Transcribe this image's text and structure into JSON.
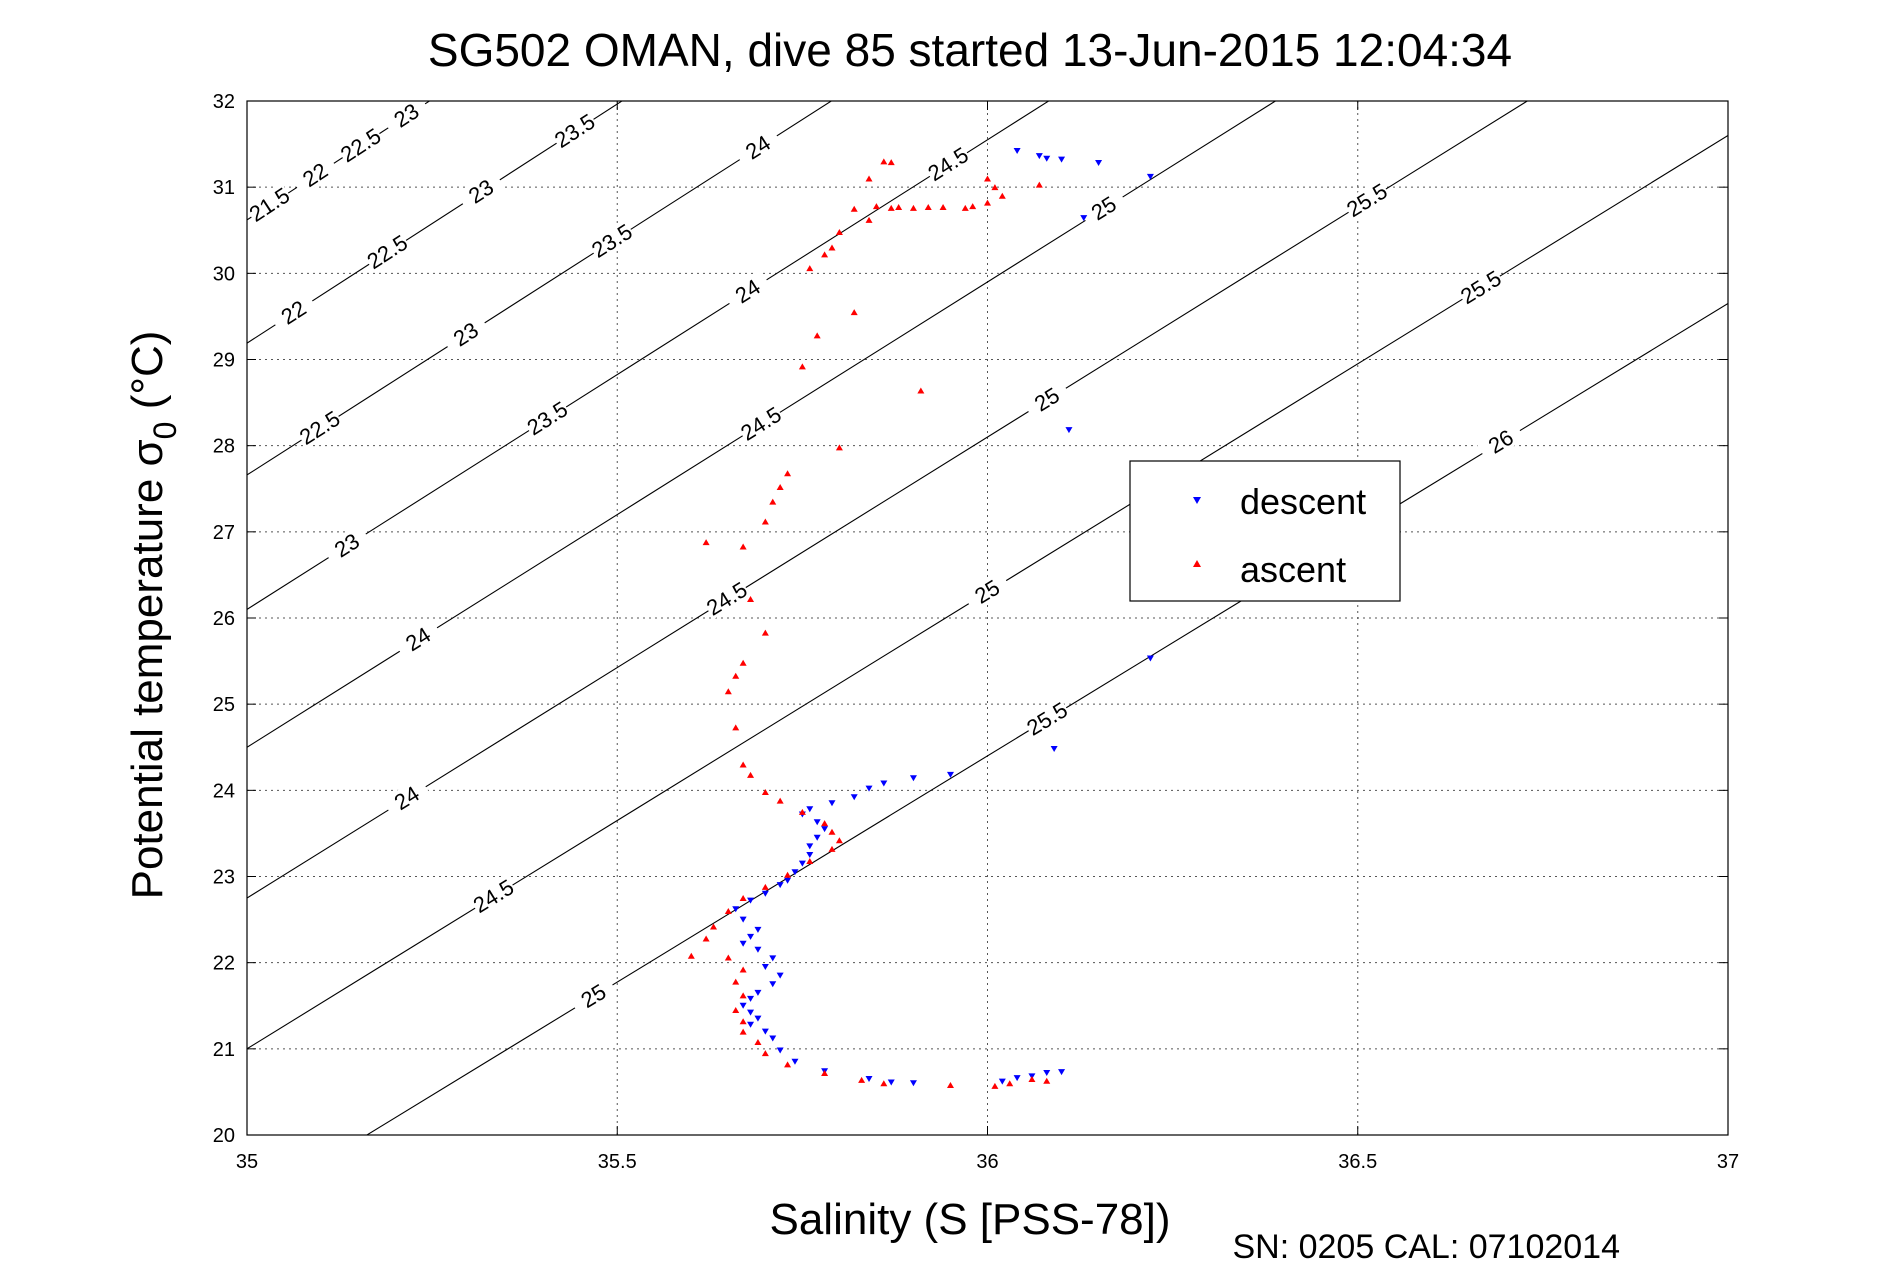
{
  "chart_data": {
    "type": "scatter",
    "title": "SG502 OMAN, dive 85 started 13-Jun-2015 12:04:34",
    "xlabel": "Salinity (S [PSS-78])",
    "ylabel_main": "Potential temperature σ",
    "ylabel_sub": "0",
    "ylabel_unit": " (°C)",
    "footer": "SN: 0205  CAL: 07102014",
    "xlim": [
      35,
      37
    ],
    "ylim": [
      20,
      32
    ],
    "xticks": [
      "35",
      "35.5",
      "36",
      "36.5",
      "37"
    ],
    "yticks": [
      "20",
      "21",
      "22",
      "23",
      "24",
      "25",
      "26",
      "27",
      "28",
      "29",
      "30",
      "31",
      "32"
    ],
    "grid": true,
    "legend_position": "center-right",
    "series": [
      {
        "name": "descent",
        "color": "#0000ff",
        "marker": "triangle-down",
        "points": [
          [
            36.04,
            31.42
          ],
          [
            36.07,
            31.36
          ],
          [
            36.08,
            31.33
          ],
          [
            36.1,
            31.32
          ],
          [
            36.15,
            31.28
          ],
          [
            36.22,
            31.12
          ],
          [
            36.13,
            30.64
          ],
          [
            36.11,
            28.18
          ],
          [
            36.22,
            25.53
          ],
          [
            36.09,
            24.48
          ],
          [
            35.95,
            24.18
          ],
          [
            35.9,
            24.14
          ],
          [
            35.86,
            24.08
          ],
          [
            35.84,
            24.02
          ],
          [
            35.82,
            23.92
          ],
          [
            35.79,
            23.85
          ],
          [
            35.76,
            23.78
          ],
          [
            35.75,
            23.72
          ],
          [
            35.77,
            23.63
          ],
          [
            35.78,
            23.55
          ],
          [
            35.77,
            23.45
          ],
          [
            35.76,
            23.35
          ],
          [
            35.76,
            23.25
          ],
          [
            35.75,
            23.15
          ],
          [
            35.74,
            23.05
          ],
          [
            35.73,
            22.95
          ],
          [
            35.72,
            22.9
          ],
          [
            35.7,
            22.8
          ],
          [
            35.68,
            22.72
          ],
          [
            35.66,
            22.62
          ],
          [
            35.67,
            22.5
          ],
          [
            35.69,
            22.38
          ],
          [
            35.68,
            22.3
          ],
          [
            35.67,
            22.22
          ],
          [
            35.69,
            22.15
          ],
          [
            35.71,
            22.05
          ],
          [
            35.7,
            21.95
          ],
          [
            35.72,
            21.85
          ],
          [
            35.71,
            21.75
          ],
          [
            35.69,
            21.65
          ],
          [
            35.68,
            21.58
          ],
          [
            35.67,
            21.5
          ],
          [
            35.68,
            21.42
          ],
          [
            35.69,
            21.35
          ],
          [
            35.68,
            21.28
          ],
          [
            35.7,
            21.2
          ],
          [
            35.71,
            21.12
          ],
          [
            35.72,
            20.98
          ],
          [
            35.74,
            20.85
          ],
          [
            35.78,
            20.74
          ],
          [
            35.84,
            20.65
          ],
          [
            35.87,
            20.61
          ],
          [
            35.9,
            20.6
          ],
          [
            36.02,
            20.62
          ],
          [
            36.04,
            20.66
          ],
          [
            36.06,
            20.68
          ],
          [
            36.08,
            20.72
          ],
          [
            36.1,
            20.73
          ]
        ]
      },
      {
        "name": "ascent",
        "color": "#ff0000",
        "marker": "triangle-up",
        "points": [
          [
            35.86,
            31.3
          ],
          [
            35.87,
            31.29
          ],
          [
            35.84,
            31.1
          ],
          [
            36.0,
            31.1
          ],
          [
            36.07,
            31.03
          ],
          [
            36.01,
            31.0
          ],
          [
            36.02,
            30.9
          ],
          [
            36.0,
            30.82
          ],
          [
            35.98,
            30.78
          ],
          [
            35.85,
            30.78
          ],
          [
            35.87,
            30.76
          ],
          [
            35.88,
            30.77
          ],
          [
            35.9,
            30.76
          ],
          [
            35.92,
            30.77
          ],
          [
            35.94,
            30.77
          ],
          [
            35.97,
            30.76
          ],
          [
            35.82,
            30.75
          ],
          [
            35.84,
            30.62
          ],
          [
            35.8,
            30.48
          ],
          [
            35.79,
            30.3
          ],
          [
            35.78,
            30.22
          ],
          [
            35.76,
            30.06
          ],
          [
            35.82,
            29.55
          ],
          [
            35.77,
            29.28
          ],
          [
            35.75,
            28.92
          ],
          [
            35.91,
            28.64
          ],
          [
            35.8,
            27.98
          ],
          [
            35.73,
            27.68
          ],
          [
            35.72,
            27.52
          ],
          [
            35.71,
            27.35
          ],
          [
            35.7,
            27.12
          ],
          [
            35.62,
            26.88
          ],
          [
            35.67,
            26.83
          ],
          [
            35.68,
            26.22
          ],
          [
            35.7,
            25.83
          ],
          [
            35.67,
            25.48
          ],
          [
            35.66,
            25.33
          ],
          [
            35.65,
            25.15
          ],
          [
            35.66,
            24.73
          ],
          [
            35.67,
            24.3
          ],
          [
            35.68,
            24.18
          ],
          [
            35.7,
            23.98
          ],
          [
            35.72,
            23.88
          ],
          [
            35.75,
            23.75
          ],
          [
            35.78,
            23.62
          ],
          [
            35.79,
            23.52
          ],
          [
            35.8,
            23.42
          ],
          [
            35.79,
            23.32
          ],
          [
            35.76,
            23.18
          ],
          [
            35.73,
            23.02
          ],
          [
            35.7,
            22.88
          ],
          [
            35.67,
            22.75
          ],
          [
            35.65,
            22.6
          ],
          [
            35.63,
            22.42
          ],
          [
            35.62,
            22.28
          ],
          [
            35.6,
            22.08
          ],
          [
            35.65,
            22.06
          ],
          [
            35.67,
            21.92
          ],
          [
            35.66,
            21.78
          ],
          [
            35.67,
            21.62
          ],
          [
            35.66,
            21.45
          ],
          [
            35.67,
            21.32
          ],
          [
            35.67,
            21.2
          ],
          [
            35.69,
            21.08
          ],
          [
            35.7,
            20.95
          ],
          [
            35.73,
            20.82
          ],
          [
            35.78,
            20.72
          ],
          [
            35.83,
            20.64
          ],
          [
            35.86,
            20.6
          ],
          [
            35.95,
            20.58
          ],
          [
            36.01,
            20.57
          ],
          [
            36.03,
            20.6
          ],
          [
            36.06,
            20.65
          ],
          [
            36.08,
            20.63
          ]
        ]
      }
    ],
    "contours": [
      {
        "labels": [
          "21.5",
          "22",
          "22.5",
          "23"
        ],
        "y_at_35": 30.62,
        "slope": 5.6
      },
      {
        "labels": [
          "22",
          "22.5",
          "23",
          "23.5"
        ],
        "y_at_35": 29.19,
        "slope": 5.55
      },
      {
        "labels": [
          "22.5",
          "23",
          "23.5",
          "24"
        ],
        "y_at_35": 27.66,
        "slope": 5.5
      },
      {
        "labels": [
          "23",
          "23.5",
          "24",
          "24.5"
        ],
        "y_at_35": 26.1,
        "slope": 5.45
      },
      {
        "labels": [
          "24",
          "24.5",
          "25"
        ],
        "y_at_35": 24.5,
        "slope": 5.4
      },
      {
        "labels": [
          "24",
          "24.5",
          "25",
          "25.5"
        ],
        "y_at_35": 22.75,
        "slope": 5.35
      },
      {
        "labels": [
          "24.5",
          "25",
          "25.5"
        ],
        "y_at_35": 21.0,
        "slope": 5.3
      },
      {
        "labels": [
          "25",
          "25.5",
          "26"
        ],
        "y_at_35": 19.15,
        "slope": 5.25
      }
    ]
  }
}
